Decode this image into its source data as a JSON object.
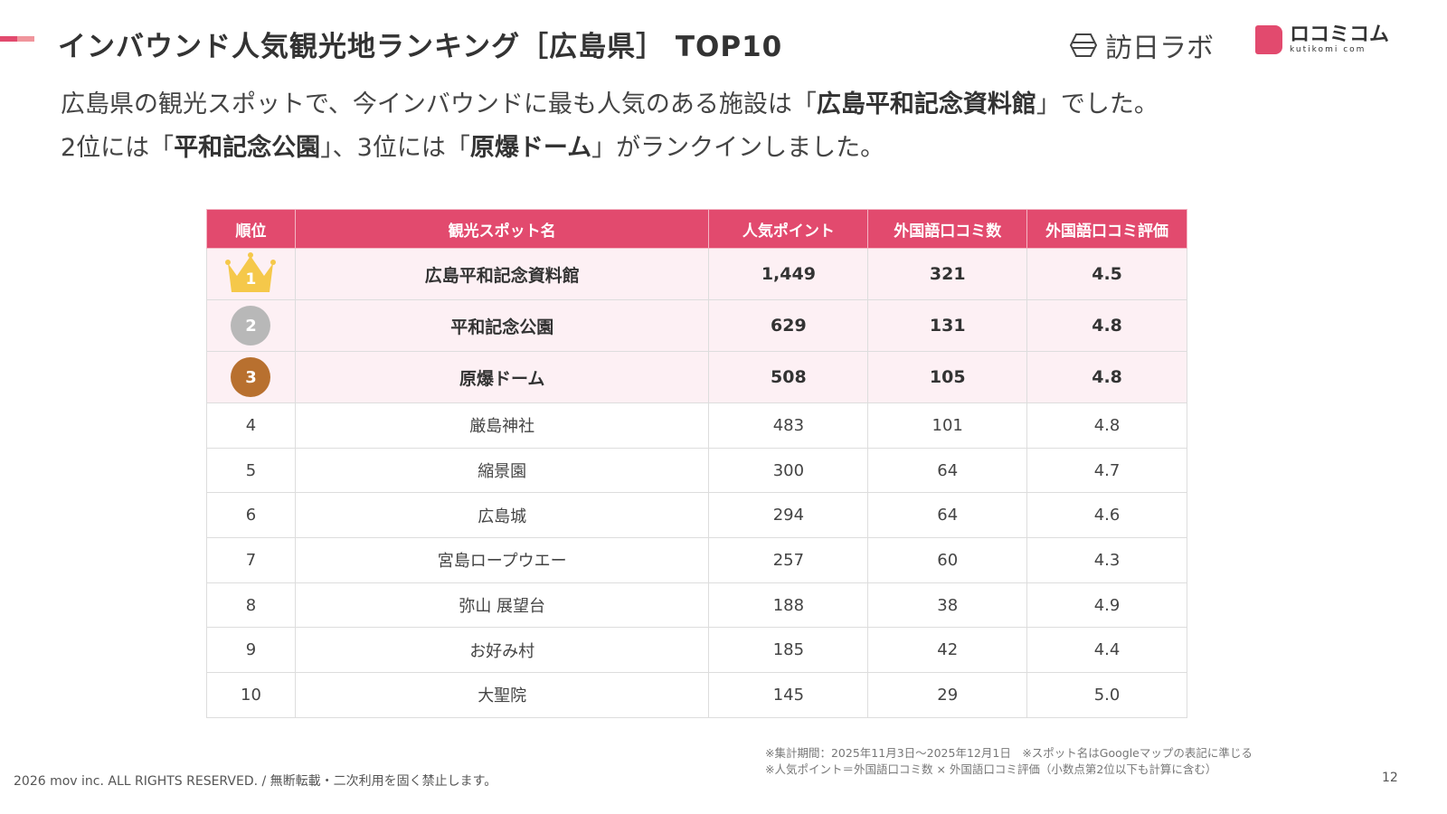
{
  "header": {
    "title": "インバウンド人気観光地ランキング［広島県］ TOP10",
    "logo_houjin": "訪日ラボ",
    "logo_kutikomi": "ロコミコム",
    "logo_kutikomi_sub": "kutikomi com"
  },
  "lead": {
    "l1a": "広島県の観光スポットで、今インバウンドに最も人気のある施設は「",
    "l1b": "広島平和記念資料館",
    "l1c": "」でした。",
    "l2a": "2位には「",
    "l2b": "平和記念公園",
    "l2c": "」、3位には「",
    "l2d": "原爆ドーム",
    "l2e": "」がランクインしました。"
  },
  "table": {
    "headers": [
      "順位",
      "観光スポット名",
      "人気ポイント",
      "外国語口コミ数",
      "外国語口コミ評価"
    ],
    "rows": [
      {
        "rank": "1",
        "name": "広島平和記念資料館",
        "points": "1,449",
        "reviews": "321",
        "rating": "4.5"
      },
      {
        "rank": "2",
        "name": "平和記念公園",
        "points": "629",
        "reviews": "131",
        "rating": "4.8"
      },
      {
        "rank": "3",
        "name": "原爆ドーム",
        "points": "508",
        "reviews": "105",
        "rating": "4.8"
      },
      {
        "rank": "4",
        "name": "厳島神社",
        "points": "483",
        "reviews": "101",
        "rating": "4.8"
      },
      {
        "rank": "5",
        "name": "縮景園",
        "points": "300",
        "reviews": "64",
        "rating": "4.7"
      },
      {
        "rank": "6",
        "name": "広島城",
        "points": "294",
        "reviews": "64",
        "rating": "4.6"
      },
      {
        "rank": "7",
        "name": "宮島ロープウエー",
        "points": "257",
        "reviews": "60",
        "rating": "4.3"
      },
      {
        "rank": "8",
        "name": "弥山 展望台",
        "points": "188",
        "reviews": "38",
        "rating": "4.9"
      },
      {
        "rank": "9",
        "name": "お好み村",
        "points": "185",
        "reviews": "42",
        "rating": "4.4"
      },
      {
        "rank": "10",
        "name": "大聖院",
        "points": "145",
        "reviews": "29",
        "rating": "5.0"
      }
    ]
  },
  "notes": {
    "n1": "※集計期間：2025年11月3日〜2025年12月1日　※スポット名はGoogleマップの表記に準じる",
    "n2": "※人気ポイント＝外国語口コミ数 × 外国語口コミ評価（小数点第2位以下も計算に含む）"
  },
  "footer": {
    "copyright": "2026 mov inc. ALL RIGHTS RESERVED. / 無断転載・二次利用を固く禁止します。",
    "page": "12"
  },
  "colors": {
    "accent": "#e24a6e",
    "gold": "#f5c84a",
    "silver": "#b8b8b8",
    "bronze": "#b8702f"
  }
}
